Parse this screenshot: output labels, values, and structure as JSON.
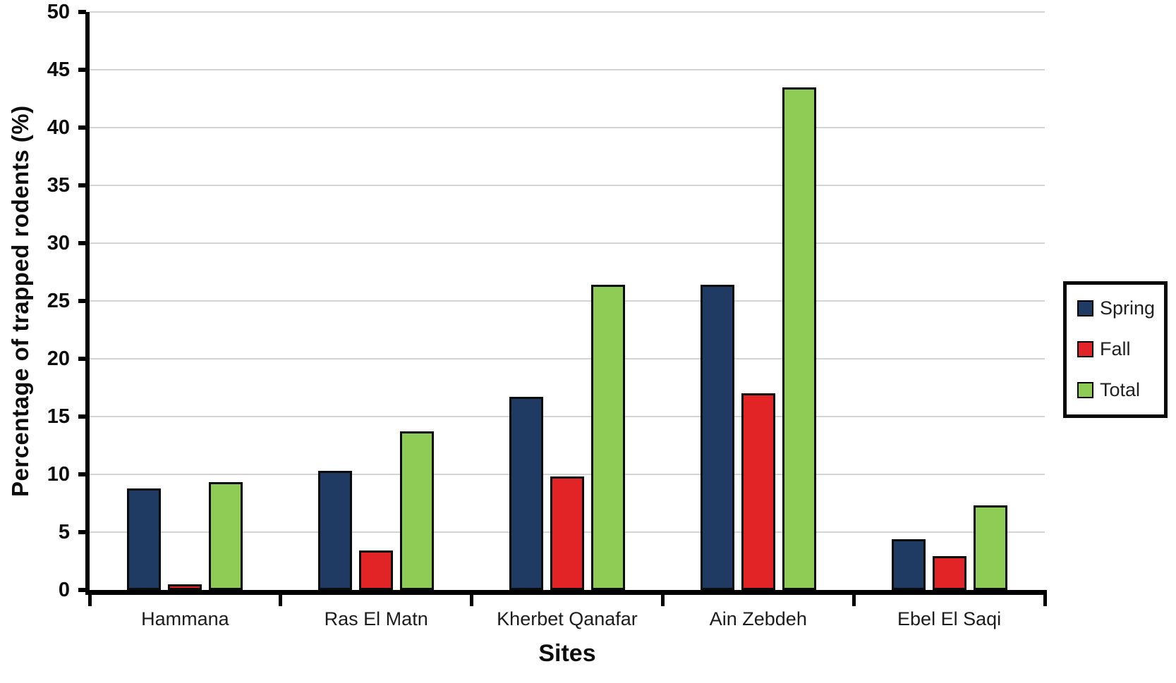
{
  "chart_data": {
    "type": "bar",
    "title": "",
    "xlabel": "Sites",
    "ylabel": "Percentage of trapped rodents (%)",
    "categories": [
      "Hammana",
      "Ras El Matn",
      "Kherbet Qanafar",
      "Ain Zebdeh",
      "Ebel El Saqi"
    ],
    "series": [
      {
        "name": "Spring",
        "color": "#1f3b63",
        "values": [
          8.8,
          10.3,
          16.7,
          26.4,
          4.4
        ]
      },
      {
        "name": "Fall",
        "color": "#e32427",
        "values": [
          0.5,
          3.4,
          9.8,
          17.0,
          2.9
        ]
      },
      {
        "name": "Total",
        "color": "#8fcc55",
        "values": [
          9.3,
          13.7,
          26.4,
          43.5,
          7.3
        ]
      }
    ],
    "ylim": [
      0,
      50
    ],
    "ytick_step": 5,
    "yticks": [
      0,
      5,
      10,
      15,
      20,
      25,
      30,
      35,
      40,
      45,
      50
    ],
    "grid": "horizontal",
    "legend_position": "right",
    "legend": [
      "Spring",
      "Fall",
      "Total"
    ],
    "bar_outline_color": "#0b0b0b",
    "gridline_color": "#d4d4d4",
    "axis_color": "#000000"
  }
}
